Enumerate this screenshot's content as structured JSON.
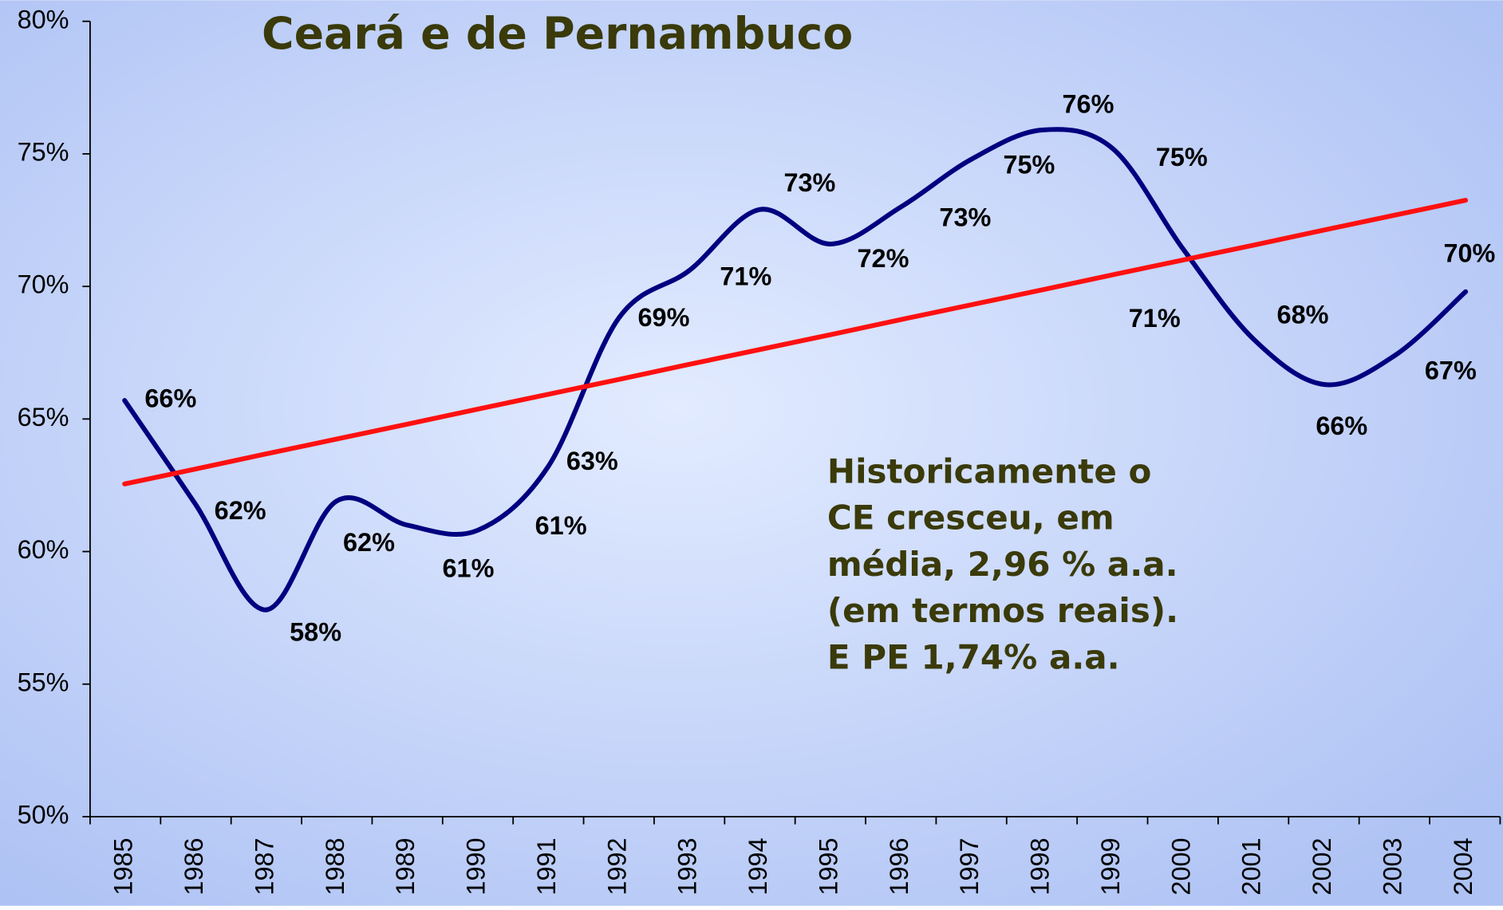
{
  "chart_data": {
    "type": "line",
    "title": "Ceará e de Pernambuco",
    "annotation": [
      "Historicamente o",
      "CE cresceu, em",
      "média, 2,96 % a.a.",
      "(em termos reais).",
      "E PE 1,74% a.a."
    ],
    "categories": [
      "1985",
      "1986",
      "1987",
      "1988",
      "1989",
      "1990",
      "1991",
      "1992",
      "1993",
      "1994",
      "1995",
      "1996",
      "1997",
      "1998",
      "1999",
      "2000",
      "2001",
      "2002",
      "2003",
      "2004"
    ],
    "series": [
      {
        "color": "#000080",
        "values": [
          65.7,
          61.8,
          57.8,
          61.9,
          61.0,
          60.8,
          63.2,
          68.8,
          70.6,
          72.9,
          71.6,
          73.0,
          74.8,
          75.9,
          75.2,
          71.4,
          68.0,
          66.3,
          67.4,
          69.8
        ],
        "value_labels": [
          "66%",
          "62%",
          "58%",
          "62%",
          "61%",
          "61%",
          "63%",
          "69%",
          "71%",
          "73%",
          "72%",
          "73%",
          "75%",
          "76%",
          "75%",
          "71%",
          "68%",
          "66%",
          "67%",
          "70%"
        ]
      },
      {
        "color": "#ff1010",
        "values": [
          62.55,
          63.11,
          63.68,
          64.24,
          64.8,
          65.37,
          65.93,
          66.49,
          67.06,
          67.62,
          68.18,
          68.75,
          69.31,
          69.87,
          70.44,
          71.0,
          71.56,
          72.13,
          72.69,
          73.25
        ]
      }
    ],
    "ylim": [
      50,
      80
    ],
    "yticks": [
      {
        "value": 50,
        "label": "50%"
      },
      {
        "value": 55,
        "label": "55%"
      },
      {
        "value": 60,
        "label": "60%"
      },
      {
        "value": 65,
        "label": "65%"
      },
      {
        "value": 70,
        "label": "70%"
      },
      {
        "value": 75,
        "label": "75%"
      },
      {
        "value": 80,
        "label": "80%"
      }
    ]
  }
}
